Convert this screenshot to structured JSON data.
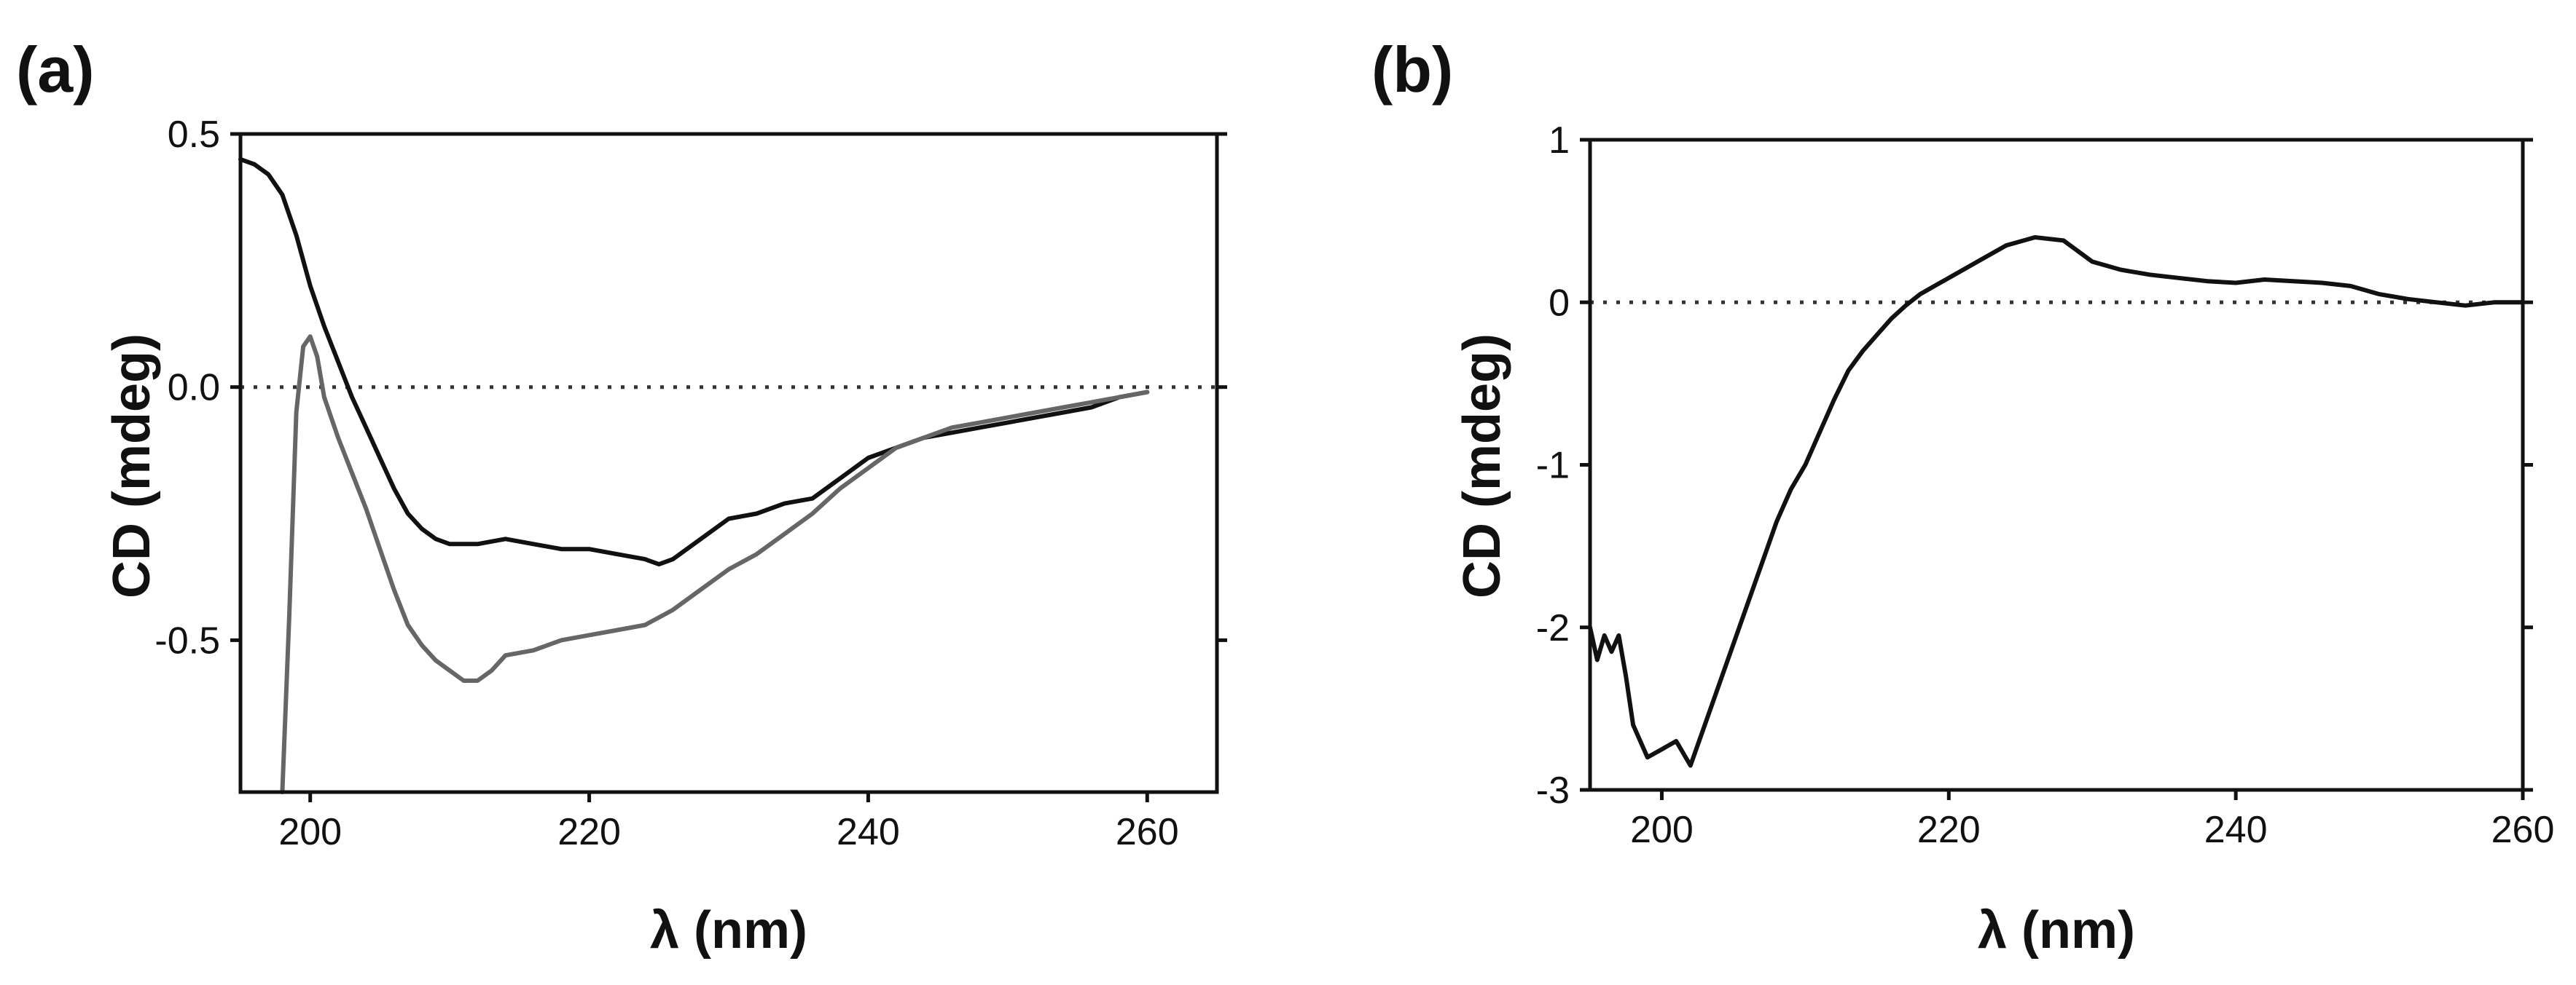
{
  "chart_data": [
    {
      "panel_label": "(a)",
      "type": "line",
      "xlabel": "λ (nm)",
      "ylabel": "CD (mdeg)",
      "xlim": [
        195,
        265
      ],
      "ylim": [
        -0.8,
        0.5
      ],
      "xticks": [
        200,
        220,
        240,
        260
      ],
      "xtick_labels": [
        "200",
        "220",
        "240",
        "260"
      ],
      "yticks": [
        0.5,
        0.0,
        -0.5
      ],
      "ytick_labels": [
        "0.5",
        "0.0",
        "-0.5"
      ],
      "zero_line": "dotted",
      "series": [
        {
          "name": "black trace",
          "color": "#111111",
          "x": [
            195,
            196,
            197,
            198,
            199,
            200,
            201,
            202,
            203,
            204,
            205,
            206,
            207,
            208,
            209,
            210,
            212,
            214,
            216,
            218,
            220,
            222,
            224,
            225,
            226,
            228,
            230,
            232,
            234,
            236,
            238,
            240,
            242,
            244,
            246,
            248,
            250,
            252,
            254,
            256,
            258,
            260
          ],
          "y": [
            0.45,
            0.44,
            0.42,
            0.38,
            0.3,
            0.2,
            0.12,
            0.05,
            -0.02,
            -0.08,
            -0.14,
            -0.2,
            -0.25,
            -0.28,
            -0.3,
            -0.31,
            -0.31,
            -0.3,
            -0.31,
            -0.32,
            -0.32,
            -0.33,
            -0.34,
            -0.35,
            -0.34,
            -0.3,
            -0.26,
            -0.25,
            -0.23,
            -0.22,
            -0.18,
            -0.14,
            -0.12,
            -0.1,
            -0.09,
            -0.08,
            -0.07,
            -0.06,
            -0.05,
            -0.04,
            -0.02,
            -0.01
          ]
        },
        {
          "name": "gray trace",
          "color": "#666666",
          "x": [
            198,
            198.5,
            199,
            199.5,
            200,
            200.5,
            201,
            202,
            203,
            204,
            205,
            206,
            207,
            208,
            209,
            210,
            211,
            212,
            213,
            214,
            216,
            218,
            220,
            222,
            224,
            226,
            228,
            230,
            232,
            234,
            236,
            238,
            240,
            242,
            244,
            246,
            248,
            250,
            252,
            254,
            256,
            258,
            260
          ],
          "y": [
            -0.8,
            -0.45,
            -0.05,
            0.08,
            0.1,
            0.06,
            -0.02,
            -0.1,
            -0.17,
            -0.24,
            -0.32,
            -0.4,
            -0.47,
            -0.51,
            -0.54,
            -0.56,
            -0.58,
            -0.58,
            -0.56,
            -0.53,
            -0.52,
            -0.5,
            -0.49,
            -0.48,
            -0.47,
            -0.44,
            -0.4,
            -0.36,
            -0.33,
            -0.29,
            -0.25,
            -0.2,
            -0.16,
            -0.12,
            -0.1,
            -0.08,
            -0.07,
            -0.06,
            -0.05,
            -0.04,
            -0.03,
            -0.02,
            -0.01
          ]
        }
      ]
    },
    {
      "panel_label": "(b)",
      "type": "line",
      "xlabel": "λ (nm)",
      "ylabel": "CD (mdeg)",
      "xlim": [
        195,
        260
      ],
      "ylim": [
        -3,
        1
      ],
      "xticks": [
        200,
        220,
        240,
        260
      ],
      "xtick_labels": [
        "200",
        "220",
        "240",
        "260"
      ],
      "yticks": [
        1,
        0,
        -1,
        -2,
        -3
      ],
      "ytick_labels": [
        "1",
        "0",
        "-1",
        "-2",
        "-3"
      ],
      "zero_line": "dotted",
      "series": [
        {
          "name": "CD spectrum",
          "color": "#111111",
          "x": [
            195,
            195.5,
            196,
            196.5,
            197,
            197.5,
            198,
            199,
            200,
            201,
            202,
            203,
            204,
            205,
            206,
            207,
            208,
            209,
            210,
            211,
            212,
            213,
            214,
            215,
            216,
            217,
            218,
            219,
            220,
            222,
            224,
            226,
            228,
            230,
            232,
            234,
            236,
            238,
            240,
            242,
            244,
            246,
            248,
            250,
            252,
            254,
            256,
            258,
            260
          ],
          "y": [
            -2.0,
            -2.2,
            -2.05,
            -2.15,
            -2.05,
            -2.3,
            -2.6,
            -2.8,
            -2.75,
            -2.7,
            -2.85,
            -2.6,
            -2.35,
            -2.1,
            -1.85,
            -1.6,
            -1.35,
            -1.15,
            -1.0,
            -0.8,
            -0.6,
            -0.42,
            -0.3,
            -0.2,
            -0.1,
            -0.02,
            0.05,
            0.1,
            0.15,
            0.25,
            0.35,
            0.4,
            0.38,
            0.25,
            0.2,
            0.17,
            0.15,
            0.13,
            0.12,
            0.14,
            0.13,
            0.12,
            0.1,
            0.05,
            0.02,
            0.0,
            -0.02,
            0.0,
            0.0
          ]
        }
      ]
    }
  ]
}
